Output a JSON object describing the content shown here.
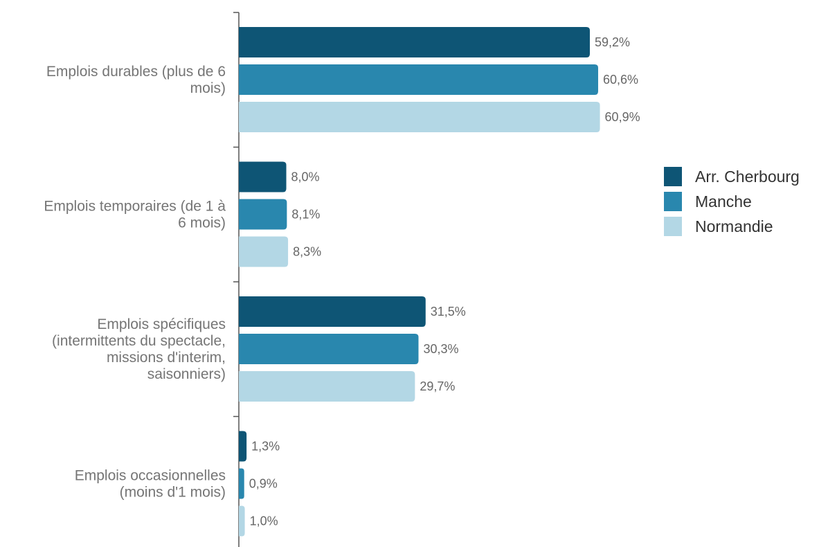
{
  "chart_data": {
    "type": "bar",
    "orientation": "horizontal",
    "categories": [
      [
        "Emplois durables (plus de 6",
        "mois)"
      ],
      [
        "Emplois temporaires (de 1 à",
        "6 mois)"
      ],
      [
        "Emplois spécifiques",
        "(intermittents du spectacle,",
        "missions d'interim,",
        "saisonniers)"
      ],
      [
        "Emplois occasionnelles",
        "(moins d'1 mois)"
      ]
    ],
    "series": [
      {
        "name": "Arr. Cherbourg",
        "color": "#0e5575",
        "values": [
          59.2,
          8.0,
          31.5,
          1.3
        ],
        "labels": [
          "59,2%",
          "8,0%",
          "31,5%",
          "1,3%"
        ]
      },
      {
        "name": "Manche",
        "color": "#2987ae",
        "values": [
          60.6,
          8.1,
          30.3,
          0.9
        ],
        "labels": [
          "60,6%",
          "8,1%",
          "30,3%",
          "0,9%"
        ]
      },
      {
        "name": "Normandie",
        "color": "#b3d7e5",
        "values": [
          60.9,
          8.3,
          29.7,
          1.0
        ],
        "labels": [
          "60,9%",
          "8,3%",
          "29,7%",
          "1,0%"
        ]
      }
    ],
    "xlim": [
      0,
      61
    ],
    "grid": false,
    "legend_position": "right"
  }
}
